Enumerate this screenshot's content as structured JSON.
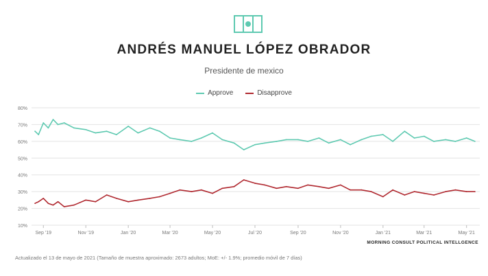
{
  "header": {
    "title": "ANDRÉS MANUEL LÓPEZ OBRADOR",
    "subtitle": "Presidente de mexico",
    "flag_icon": "mexico-flag-icon"
  },
  "legend": {
    "approve_label": "Approve",
    "disapprove_label": "Disapprove",
    "placement": "top-center"
  },
  "colors": {
    "approve": "#5dc9b0",
    "disapprove": "#b0282f",
    "grid": "#e3e3e3"
  },
  "source_label": "MORNING CONSULT POLITICAL INTELLGENCE",
  "footnote": "Actualizado el 13 de mayo de 2021 (Tamaño de muestra aproximado: 2673 adultos; MoE: +/- 1.9%; promedio móvil de 7 días)",
  "chart_data": {
    "type": "line",
    "title": "",
    "xlabel": "",
    "ylabel": "",
    "ylim": [
      10,
      80
    ],
    "yticks": [
      10,
      20,
      30,
      40,
      50,
      60,
      70,
      80
    ],
    "ytick_labels": [
      "10%",
      "20%",
      "30%",
      "40%",
      "50%",
      "60%",
      "70%",
      "80%"
    ],
    "xlim": [
      "2019-08-15",
      "2021-05-20"
    ],
    "xticks": [
      {
        "date": "2019-09-01",
        "label": "Sep '19"
      },
      {
        "date": "2019-11-01",
        "label": "Nov '19"
      },
      {
        "date": "2020-01-01",
        "label": "Jan '20"
      },
      {
        "date": "2020-03-01",
        "label": "Mar '20"
      },
      {
        "date": "2020-05-01",
        "label": "May '20"
      },
      {
        "date": "2020-07-01",
        "label": "Jul '20"
      },
      {
        "date": "2020-09-01",
        "label": "Sep '20"
      },
      {
        "date": "2020-11-01",
        "label": "Nov '20"
      },
      {
        "date": "2021-01-01",
        "label": "Jan '21"
      },
      {
        "date": "2021-03-01",
        "label": "Mar '21"
      },
      {
        "date": "2021-05-01",
        "label": "May '21"
      }
    ],
    "grid": true,
    "series": [
      {
        "name": "Approve",
        "color": "#5dc9b0",
        "x": [
          "2019-08-20",
          "2019-08-25",
          "2019-09-01",
          "2019-09-08",
          "2019-09-15",
          "2019-09-22",
          "2019-10-01",
          "2019-10-15",
          "2019-11-01",
          "2019-11-15",
          "2019-12-01",
          "2019-12-15",
          "2020-01-01",
          "2020-01-15",
          "2020-02-01",
          "2020-02-15",
          "2020-03-01",
          "2020-03-15",
          "2020-04-01",
          "2020-04-15",
          "2020-05-01",
          "2020-05-15",
          "2020-06-01",
          "2020-06-15",
          "2020-07-01",
          "2020-07-15",
          "2020-08-01",
          "2020-08-15",
          "2020-09-01",
          "2020-09-15",
          "2020-10-01",
          "2020-10-15",
          "2020-11-01",
          "2020-11-15",
          "2020-12-01",
          "2020-12-15",
          "2021-01-01",
          "2021-01-15",
          "2021-02-01",
          "2021-02-15",
          "2021-03-01",
          "2021-03-15",
          "2021-04-01",
          "2021-04-15",
          "2021-05-01",
          "2021-05-13"
        ],
        "values": [
          66,
          64,
          71,
          68,
          73,
          70,
          71,
          68,
          67,
          65,
          66,
          64,
          69,
          65,
          68,
          66,
          62,
          61,
          60,
          62,
          65,
          61,
          59,
          55,
          58,
          59,
          60,
          61,
          61,
          60,
          62,
          59,
          61,
          58,
          61,
          63,
          64,
          60,
          66,
          62,
          63,
          60,
          61,
          60,
          62,
          60
        ]
      },
      {
        "name": "Disapprove",
        "color": "#b0282f",
        "x": [
          "2019-08-20",
          "2019-08-25",
          "2019-09-01",
          "2019-09-08",
          "2019-09-15",
          "2019-09-22",
          "2019-10-01",
          "2019-10-15",
          "2019-11-01",
          "2019-11-15",
          "2019-12-01",
          "2019-12-15",
          "2020-01-01",
          "2020-01-15",
          "2020-02-01",
          "2020-02-15",
          "2020-03-01",
          "2020-03-15",
          "2020-04-01",
          "2020-04-15",
          "2020-05-01",
          "2020-05-15",
          "2020-06-01",
          "2020-06-15",
          "2020-07-01",
          "2020-07-15",
          "2020-08-01",
          "2020-08-15",
          "2020-09-01",
          "2020-09-15",
          "2020-10-01",
          "2020-10-15",
          "2020-11-01",
          "2020-11-15",
          "2020-12-01",
          "2020-12-15",
          "2021-01-01",
          "2021-01-15",
          "2021-02-01",
          "2021-02-15",
          "2021-03-01",
          "2021-03-15",
          "2021-04-01",
          "2021-04-15",
          "2021-05-01",
          "2021-05-13"
        ],
        "values": [
          23,
          24,
          26,
          23,
          22,
          24,
          21,
          22,
          25,
          24,
          28,
          26,
          24,
          25,
          26,
          27,
          29,
          31,
          30,
          31,
          29,
          32,
          33,
          37,
          35,
          34,
          32,
          33,
          32,
          34,
          33,
          32,
          34,
          31,
          31,
          30,
          27,
          31,
          28,
          30,
          29,
          28,
          30,
          31,
          30,
          30
        ]
      }
    ]
  }
}
